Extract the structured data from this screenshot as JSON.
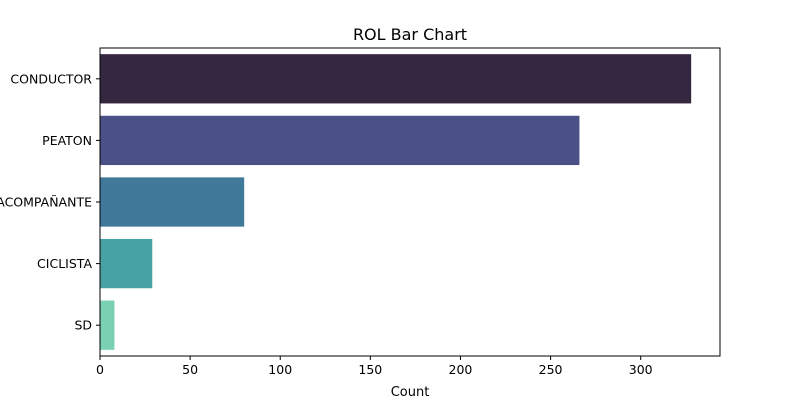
{
  "chart_data": {
    "type": "bar",
    "orientation": "horizontal",
    "title": "ROL Bar Chart",
    "xlabel": "Count",
    "ylabel": "",
    "categories": [
      "CONDUCTOR",
      "PEATON",
      "ACOMPAÑANTE",
      "CICLISTA",
      "SD"
    ],
    "values": [
      328,
      266,
      80,
      29,
      8
    ],
    "colors": [
      "#35273f",
      "#4a5186",
      "#41799a",
      "#47a2a3",
      "#79d0b2"
    ],
    "xlim": [
      0,
      344
    ],
    "xticks": [
      0,
      50,
      100,
      150,
      200,
      250,
      300
    ],
    "grid": false,
    "legend": "none"
  }
}
